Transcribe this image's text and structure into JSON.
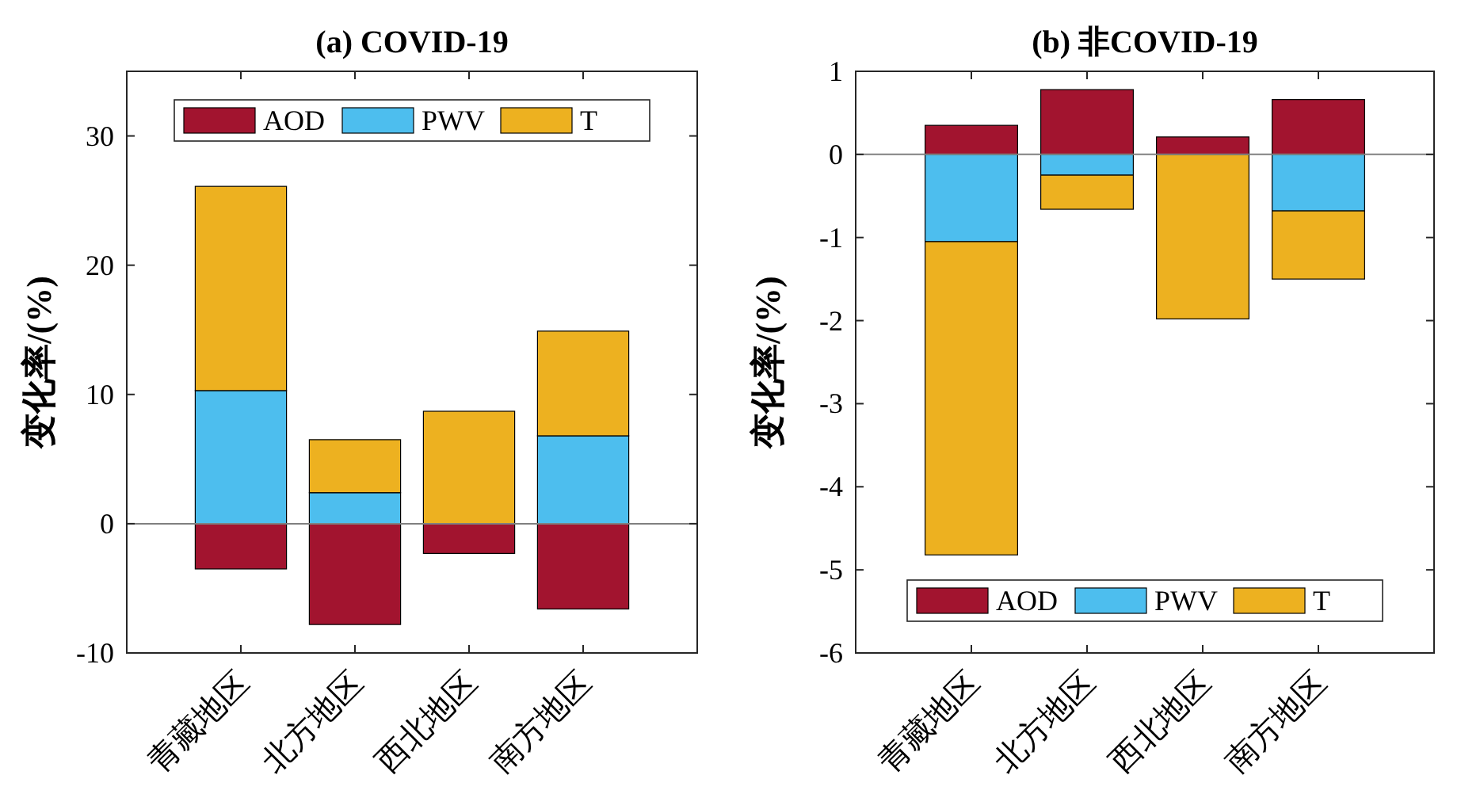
{
  "chart_data": [
    {
      "type": "bar",
      "stacked": true,
      "title": "(a) COVID-19",
      "ylabel": "变化率/(%)",
      "categories": [
        "青藏地区",
        "北方地区",
        "西北地区",
        "南方地区"
      ],
      "series": [
        {
          "name": "AOD",
          "color": "#a2142f",
          "values": [
            -3.5,
            -7.8,
            -2.3,
            -6.6
          ]
        },
        {
          "name": "PWV",
          "color": "#4dbeee",
          "values": [
            10.3,
            2.4,
            0,
            6.8
          ]
        },
        {
          "name": "T",
          "color": "#edb120",
          "values": [
            15.8,
            4.1,
            8.7,
            8.1
          ]
        }
      ],
      "ylim": [
        -10,
        35
      ],
      "yticks": [
        -10,
        0,
        10,
        20,
        30
      ],
      "ref_lines": [
        {
          "axis": "y",
          "value": 0,
          "color": "#808080"
        }
      ],
      "legend": "top",
      "grid": false
    },
    {
      "type": "bar",
      "stacked": true,
      "title": "(b) 非COVID-19",
      "ylabel": "变化率/(%)",
      "categories": [
        "青藏地区",
        "北方地区",
        "西北地区",
        "南方地区"
      ],
      "series": [
        {
          "name": "AOD",
          "color": "#a2142f",
          "values": [
            0.35,
            0.78,
            0.21,
            0.66
          ]
        },
        {
          "name": "PWV",
          "color": "#4dbeee",
          "values": [
            -1.05,
            -0.25,
            0,
            -0.68
          ]
        },
        {
          "name": "T",
          "color": "#edb120",
          "values": [
            -3.77,
            -0.41,
            -1.98,
            -0.82
          ]
        }
      ],
      "ylim": [
        -6,
        1
      ],
      "yticks": [
        -6,
        -5,
        -4,
        -3,
        -2,
        -1,
        0,
        1
      ],
      "ref_lines": [
        {
          "axis": "y",
          "value": 0,
          "color": "#808080"
        }
      ],
      "legend": "bottom",
      "grid": false
    }
  ]
}
